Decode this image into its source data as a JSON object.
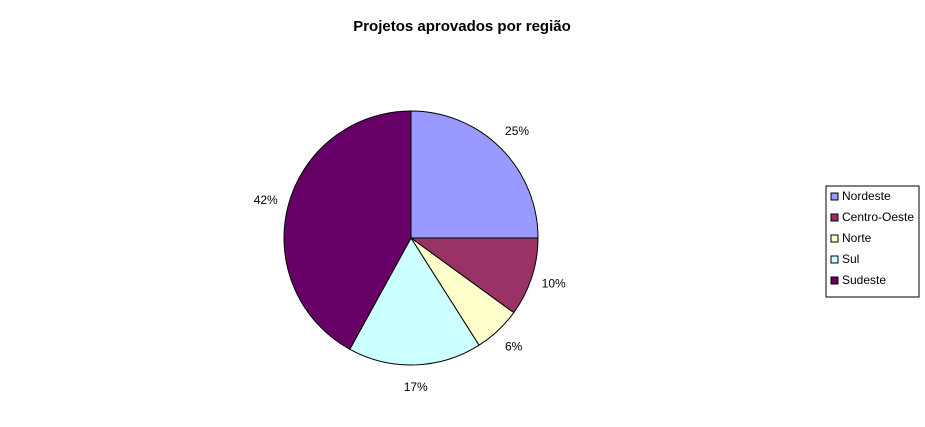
{
  "chart_data": {
    "type": "pie",
    "title": "Projetos aprovados por região",
    "categories": [
      "Nordeste",
      "Centro-Oeste",
      "Norte",
      "Sul",
      "Sudeste"
    ],
    "values": [
      25,
      10,
      6,
      17,
      42
    ],
    "value_labels": [
      "25%",
      "10%",
      "6%",
      "17%",
      "42%"
    ],
    "colors": [
      "#9999ff",
      "#993366",
      "#ffffcc",
      "#ccffff",
      "#660066"
    ],
    "legend": "right"
  }
}
